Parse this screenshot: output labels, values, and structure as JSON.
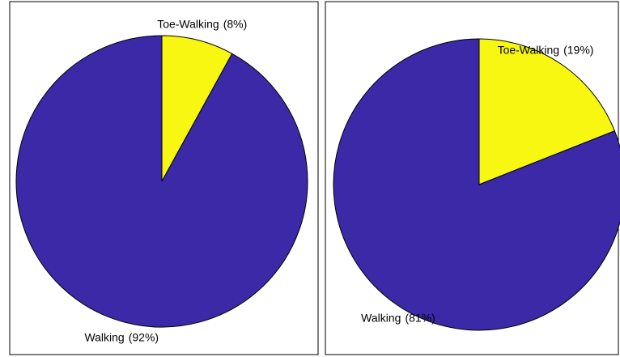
{
  "chart_data": [
    {
      "type": "pie",
      "categories": [
        "Toe-Walking",
        "Walking"
      ],
      "values": [
        8,
        92
      ],
      "value_labels": [
        "(8%)",
        "(92%)"
      ],
      "colors": [
        "#f7f712",
        "#3b29a7"
      ]
    },
    {
      "type": "pie",
      "categories": [
        "Toe-Walking",
        "Walking"
      ],
      "values": [
        19,
        81
      ],
      "value_labels": [
        "(19%)",
        "(81%)"
      ],
      "colors": [
        "#f7f712",
        "#3b29a7"
      ]
    }
  ]
}
